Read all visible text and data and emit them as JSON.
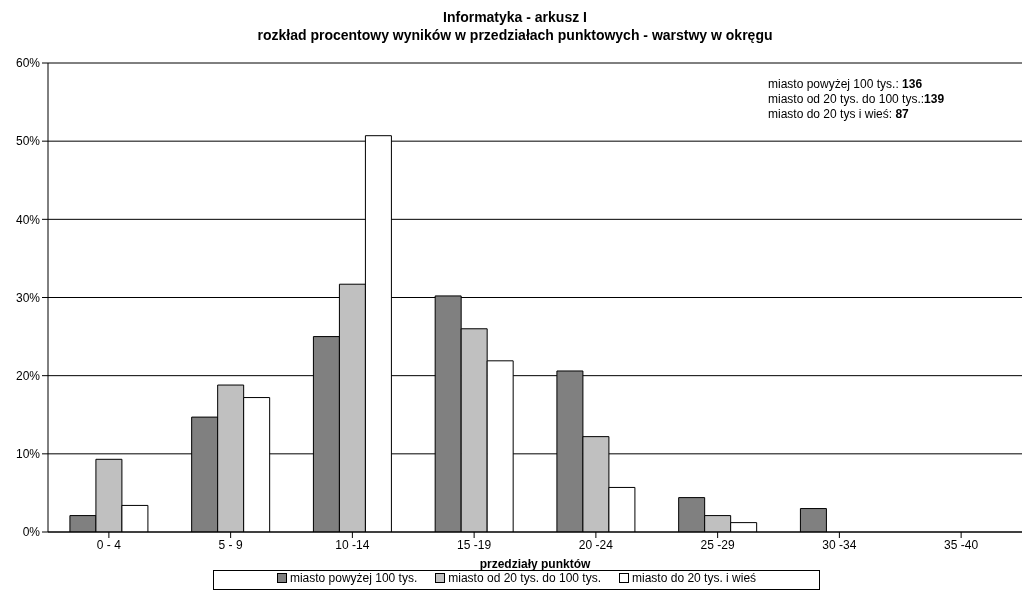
{
  "chart_data": {
    "type": "bar",
    "title": "Informatyka - arkusz I",
    "subtitle": "rozkład procentowy wyników w przedziałach punktowych - warstwy w okręgu",
    "xlabel": "przedziały punktów",
    "categories": [
      "0 - 4",
      "5 - 9",
      "10 -14",
      "15 -19",
      "20 -24",
      "25 -29",
      "30 -34",
      "35 -40"
    ],
    "series": [
      {
        "name": "miasto powyżej 100 tys.",
        "color": "#808080",
        "values": [
          2.1,
          14.7,
          25.0,
          30.2,
          20.6,
          4.4,
          3.0,
          0
        ]
      },
      {
        "name": "miasto od 20 tys. do 100 tys.",
        "color": "#c0c0c0",
        "values": [
          9.3,
          18.8,
          31.7,
          26.0,
          12.2,
          2.1,
          0,
          0
        ]
      },
      {
        "name": "miasto do 20 tys. i wieś",
        "color": "#ffffff",
        "values": [
          3.4,
          17.2,
          50.7,
          21.9,
          5.7,
          1.2,
          0,
          0
        ]
      }
    ],
    "ylim": [
      0,
      60
    ],
    "yticks": [
      {
        "value": 0,
        "label": "0%"
      },
      {
        "value": 10,
        "label": "10%"
      },
      {
        "value": 20,
        "label": "20%"
      },
      {
        "value": 30,
        "label": "30%"
      },
      {
        "value": 40,
        "label": "40%"
      },
      {
        "value": 50,
        "label": "50%"
      },
      {
        "value": 60,
        "label": "60%"
      }
    ],
    "grid": "y",
    "legend": "bottom",
    "annotations": [
      "miasto powyżej 100 tys.: 136",
      "miasto od 20 tys. do 100 tys.:139",
      "miasto do 20 tys i wieś: 87"
    ]
  }
}
